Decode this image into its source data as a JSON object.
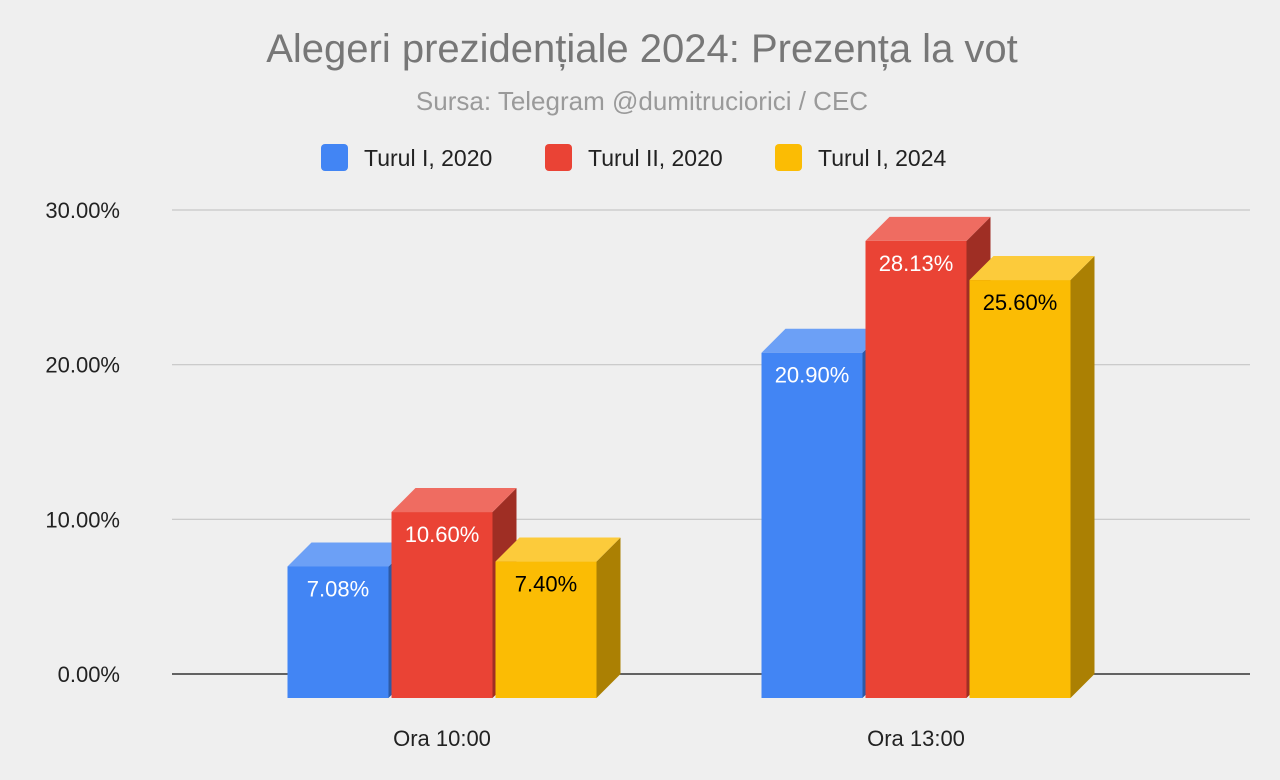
{
  "chart_data": {
    "type": "bar",
    "title": "Alegeri prezidențiale 2024: Prezența la vot",
    "subtitle": "Sursa: Telegram @dumitruciorici / CEC",
    "categories": [
      "Ora 10:00",
      "Ora 13:00"
    ],
    "series": [
      {
        "name": "Turul I, 2020",
        "values": [
          7.08,
          20.9
        ],
        "labels": [
          "7.08%",
          "20.90%"
        ],
        "color": "#4285f4",
        "label_color": "#ffffff"
      },
      {
        "name": "Turul II, 2020",
        "values": [
          10.6,
          28.13
        ],
        "labels": [
          "10.60%",
          "28.13%"
        ],
        "color": "#ea4335",
        "label_color": "#ffffff"
      },
      {
        "name": "Turul I, 2024",
        "values": [
          7.4,
          25.6
        ],
        "labels": [
          "7.40%",
          "25.60%"
        ],
        "color": "#fbbc04",
        "label_color": "#000000"
      }
    ],
    "ylim": [
      0,
      30
    ],
    "y_ticks": [
      0,
      10,
      20,
      30
    ],
    "y_tick_labels": [
      "0.00%",
      "10.00%",
      "20.00%",
      "30.00%"
    ],
    "grid": true,
    "legend_position": "top-center",
    "style": "3d"
  }
}
